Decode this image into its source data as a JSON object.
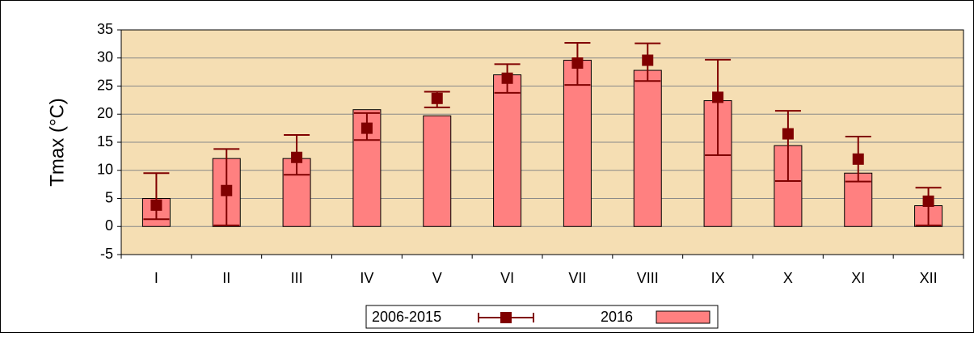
{
  "chart_data": {
    "type": "bar_errorbar",
    "ylabel": "Tmax (°C)",
    "categories": [
      "I",
      "II",
      "III",
      "IV",
      "V",
      "VI",
      "VII",
      "VIII",
      "IX",
      "X",
      "XI",
      "XII"
    ],
    "series": [
      {
        "name": "2006-2015",
        "color": "#800000",
        "values": [
          3.8,
          6.4,
          12.3,
          17.5,
          22.8,
          26.4,
          29.1,
          29.6,
          23.0,
          16.5,
          12.0,
          4.5
        ],
        "lows": [
          1.3,
          0.2,
          9.2,
          15.4,
          21.2,
          23.8,
          25.2,
          25.9,
          12.7,
          8.1,
          8.0,
          0.2
        ],
        "highs": [
          9.5,
          13.8,
          16.3,
          20.2,
          24.0,
          28.9,
          32.7,
          32.6,
          29.7,
          20.6,
          16.0,
          6.9
        ]
      },
      {
        "name": "2016",
        "color": "#ff8080",
        "values": [
          5.0,
          12.1,
          12.1,
          20.8,
          19.7,
          27.0,
          29.6,
          27.8,
          22.4,
          14.4,
          9.5,
          3.7
        ]
      }
    ],
    "ylim": [
      -5,
      35
    ],
    "yticks": [
      -5,
      0,
      5,
      10,
      15,
      20,
      25,
      30,
      35
    ],
    "grid": true,
    "background": "#f5deb3"
  }
}
